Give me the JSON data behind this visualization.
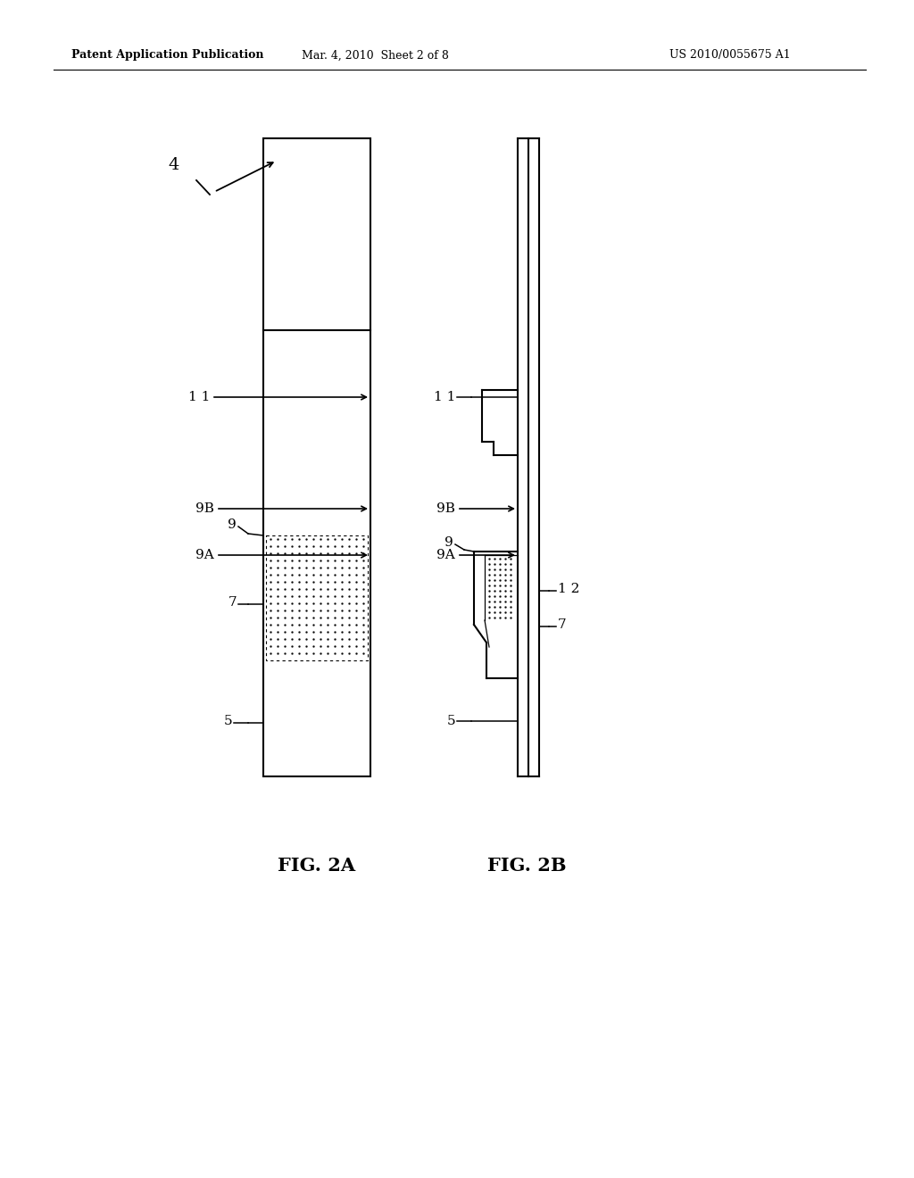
{
  "bg_color": "#ffffff",
  "header_left": "Patent Application Publication",
  "header_mid": "Mar. 4, 2010  Sheet 2 of 8",
  "header_right": "US 2010/0055675 A1",
  "fig_label_a": "FIG. 2A",
  "fig_label_b": "FIG. 2B"
}
